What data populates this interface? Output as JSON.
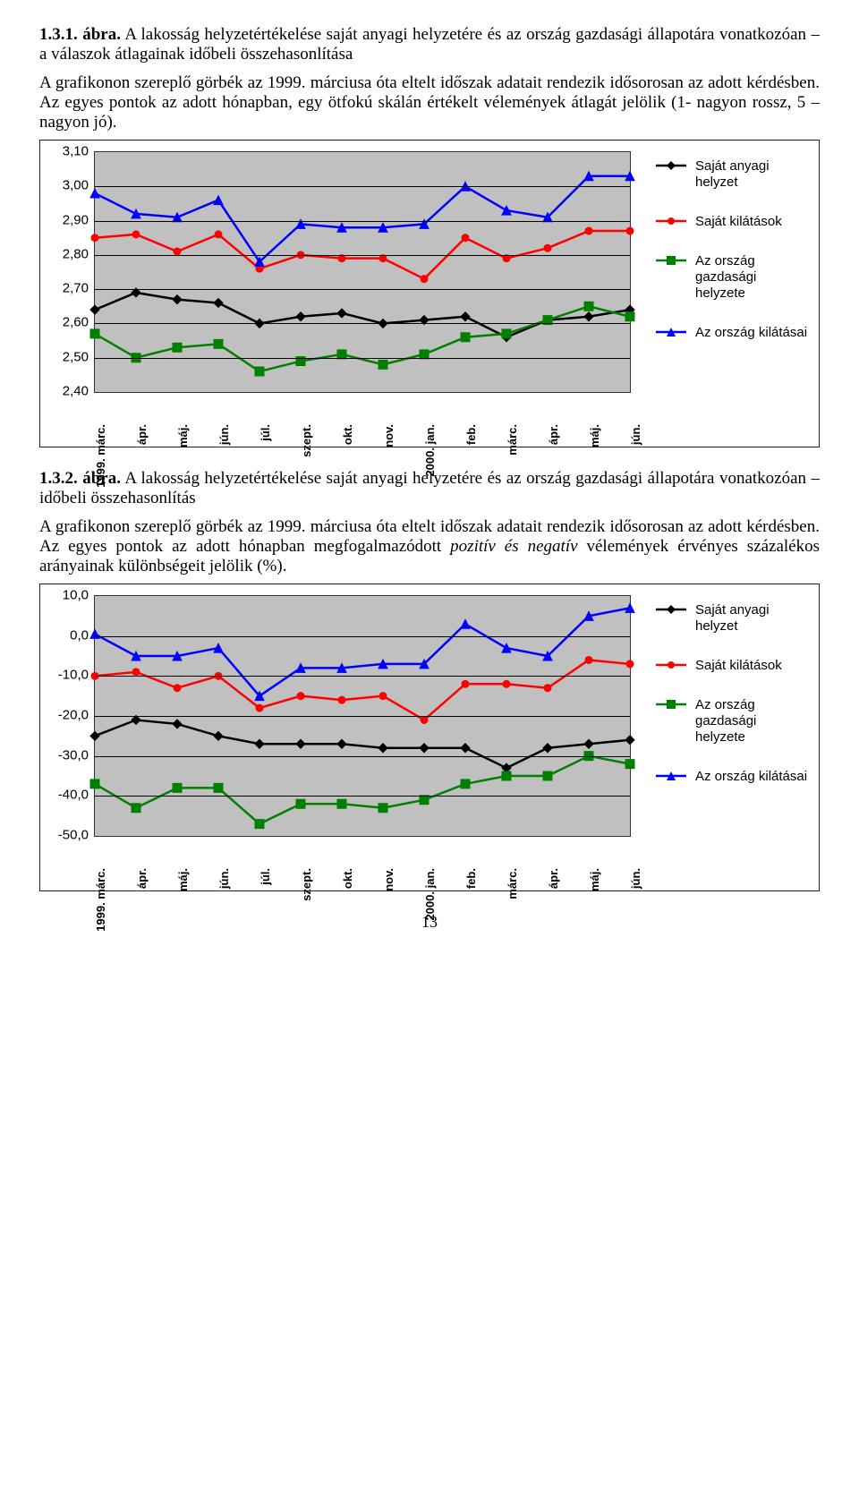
{
  "fig1": {
    "lead": "1.3.1. ábra.",
    "title_rest": " A lakosság helyzetértékelése saját anyagi helyzetére és az ország gazdasági állapotára vonatkozóan – a válaszok átlagainak időbeli összehasonlítása",
    "caption": "A grafikonon szereplő görbék az 1999. márciusa óta eltelt időszak adatait rendezik idősorosan az adott kérdésben. Az egyes pontok az adott hónapban, egy ötfokú skálán értékelt vélemények átlagát jelölik (1- nagyon rossz, 5 – nagyon jó)."
  },
  "fig2": {
    "lead": "1.3.2. ábra.",
    "title_rest": " A lakosság helyzetértékelése saját anyagi helyzetére és az ország gazdasági állapotára vonatkozóan – időbeli összehasonlítás",
    "caption_part1": "A grafikonon szereplő görbék az 1999. márciusa óta eltelt időszak adatait rendezik idősorosan az adott kérdésben. Az egyes pontok az adott hónapban megfogalmazódott ",
    "caption_italic": "pozitív és negatív",
    "caption_part2": " vélemények érvényes százalékos arányainak különbségeit jelölik (%)."
  },
  "x_labels": [
    "1999. márc.",
    "ápr.",
    "máj.",
    "jún.",
    "júl.",
    "szept.",
    "okt.",
    "nov.",
    "2000. jan.",
    "feb.",
    "márc.",
    "ápr.",
    "máj.",
    "jún."
  ],
  "chart1": {
    "type": "line",
    "background_color": "#c0c0c0",
    "grid_color": "#000000",
    "ylim": [
      2.4,
      3.1
    ],
    "ytick_step": 0.1,
    "yticks": [
      "2,40",
      "2,50",
      "2,60",
      "2,70",
      "2,80",
      "2,90",
      "3,00",
      "3,10"
    ],
    "line_width": 2.5,
    "marker_size": 6,
    "series": [
      {
        "name": "Saját anyagi helyzet",
        "color": "#000000",
        "marker": "diamond",
        "values": [
          2.64,
          2.69,
          2.67,
          2.66,
          2.6,
          2.62,
          2.63,
          2.6,
          2.61,
          2.62,
          2.56,
          2.61,
          2.62,
          2.64
        ]
      },
      {
        "name": "Saját kilátások",
        "color": "#ff0000",
        "marker": "circle",
        "values": [
          2.85,
          2.86,
          2.81,
          2.86,
          2.76,
          2.8,
          2.79,
          2.79,
          2.73,
          2.85,
          2.79,
          2.82,
          2.87,
          2.87
        ]
      },
      {
        "name": "Az ország gazdasági helyzete",
        "color": "#008000",
        "marker": "square",
        "values": [
          2.57,
          2.5,
          2.53,
          2.54,
          2.46,
          2.49,
          2.51,
          2.48,
          2.51,
          2.56,
          2.57,
          2.61,
          2.65,
          2.62
        ]
      },
      {
        "name": "Az ország kilátásai",
        "color": "#0000ff",
        "marker": "triangle",
        "values": [
          2.98,
          2.92,
          2.91,
          2.96,
          2.78,
          2.89,
          2.88,
          2.88,
          2.89,
          3.0,
          2.93,
          2.91,
          3.03,
          3.03
        ]
      }
    ]
  },
  "chart2": {
    "type": "line",
    "background_color": "#c0c0c0",
    "grid_color": "#000000",
    "ylim": [
      -50,
      10
    ],
    "ytick_step": 10,
    "yticks": [
      "-50,0",
      "-40,0",
      "-30,0",
      "-20,0",
      "-10,0",
      "0,0",
      "10,0"
    ],
    "line_width": 2.5,
    "marker_size": 6,
    "series": [
      {
        "name": "Saját anyagi helyzet",
        "color": "#000000",
        "marker": "diamond",
        "values": [
          -25,
          -21,
          -22,
          -25,
          -27,
          -27,
          -27,
          -28,
          -28,
          -28,
          -33,
          -28,
          -27,
          -26
        ]
      },
      {
        "name": "Saját kilátások",
        "color": "#ff0000",
        "marker": "circle",
        "values": [
          -10,
          -9,
          -13,
          -10,
          -18,
          -15,
          -16,
          -15,
          -21,
          -12,
          -12,
          -13,
          -6,
          -7
        ]
      },
      {
        "name": "Az ország gazdasági helyzete",
        "color": "#008000",
        "marker": "square",
        "values": [
          -37,
          -43,
          -38,
          -38,
          -47,
          -42,
          -42,
          -43,
          -41,
          -37,
          -35,
          -35,
          -30,
          -32
        ]
      },
      {
        "name": "Az ország kilátásai",
        "color": "#0000ff",
        "marker": "triangle",
        "values": [
          0.5,
          -5,
          -5,
          -3,
          -15,
          -8,
          -8,
          -7,
          -7,
          3,
          -3,
          -5,
          5,
          7
        ]
      }
    ]
  },
  "page_number": "13",
  "font": {
    "body_size_pt": 14,
    "label_size_pt": 11,
    "tick_size_pt": 11
  }
}
